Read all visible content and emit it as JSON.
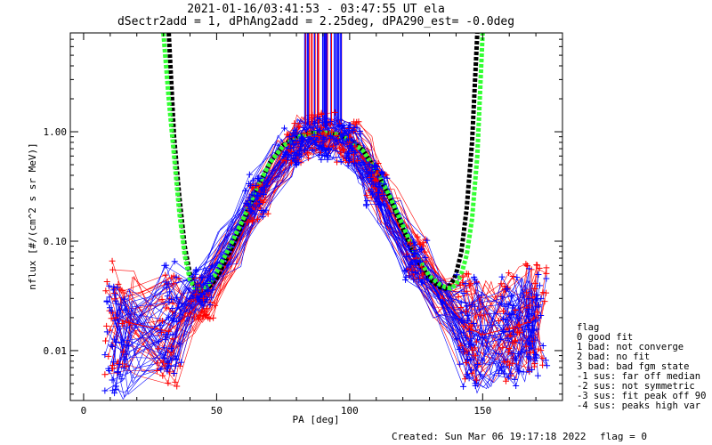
{
  "chart_data": {
    "type": "line",
    "title": "2021-01-16/03:41:53 - 03:47:55 UT ela",
    "subtitle": "dSectr2add = 1, dPhAng2add = 2.25deg, dPA290_est=  -0.0deg",
    "xlabel": "PA [deg]",
    "ylabel": "nflux [#/(cm^2 s sr MeV)]",
    "x_ticks": [
      "0",
      "50",
      "100",
      "150"
    ],
    "y_ticks": [
      "0.01",
      "0.10",
      "1.00"
    ],
    "xlim": [
      -5,
      180
    ],
    "ylim": [
      0.0035,
      8.0
    ],
    "yscale": "log",
    "legend_title": "flag",
    "legend_items": [
      " 0 good fit",
      " 1 bad: not converge",
      " 2 bad: no fit",
      " 3 bad: bad fgm state",
      "-1 sus: far off median",
      "-2 sus: not symmetric",
      "-3 sus: fit peak off 90",
      "-4 sus: peaks high var"
    ],
    "footer_created": "Created: Sun Mar 06 19:17:18 2022",
    "footer_flag": "flag = 0",
    "fit_curves": [
      {
        "color": "#000000",
        "x": [
          32,
          34,
          36,
          38,
          40,
          42,
          44,
          46,
          48,
          50,
          55,
          60,
          65,
          70,
          75,
          80,
          85,
          90,
          95,
          100,
          105,
          110,
          115,
          120,
          125,
          130,
          134,
          136,
          138,
          140,
          142,
          144,
          146,
          148
        ],
        "y": [
          8.0,
          0.9,
          0.25,
          0.09,
          0.05,
          0.038,
          0.035,
          0.036,
          0.04,
          0.046,
          0.08,
          0.15,
          0.3,
          0.52,
          0.75,
          0.9,
          0.97,
          0.98,
          0.95,
          0.85,
          0.68,
          0.44,
          0.25,
          0.13,
          0.07,
          0.045,
          0.038,
          0.037,
          0.04,
          0.05,
          0.08,
          0.2,
          0.8,
          8.0
        ]
      },
      {
        "color": "#33ff33",
        "x": [
          30,
          32,
          34,
          36,
          38,
          40,
          42,
          44,
          46,
          48,
          50,
          55,
          60,
          65,
          70,
          75,
          80,
          85,
          90,
          95,
          100,
          105,
          110,
          115,
          120,
          125,
          130,
          134,
          136,
          138,
          140,
          142,
          144,
          146,
          148,
          150
        ],
        "y": [
          8.0,
          2.0,
          0.6,
          0.18,
          0.075,
          0.044,
          0.037,
          0.036,
          0.038,
          0.043,
          0.052,
          0.09,
          0.16,
          0.3,
          0.52,
          0.74,
          0.89,
          0.96,
          0.98,
          0.95,
          0.84,
          0.67,
          0.44,
          0.26,
          0.14,
          0.075,
          0.048,
          0.04,
          0.038,
          0.037,
          0.04,
          0.05,
          0.075,
          0.16,
          0.6,
          8.0
        ]
      }
    ],
    "red_series": {
      "color": "#ff0000",
      "x": [
        12,
        17,
        32,
        40,
        45,
        55,
        65,
        75,
        80,
        85,
        90,
        95,
        100,
        105,
        110,
        115,
        125,
        135,
        145,
        150,
        160,
        167,
        170
      ],
      "y": [
        0.02,
        0.018,
        0.015,
        0.022,
        0.03,
        0.07,
        0.22,
        0.55,
        0.8,
        0.95,
        0.98,
        0.92,
        0.8,
        0.58,
        0.36,
        0.2,
        0.07,
        0.03,
        0.016,
        0.014,
        0.016,
        0.018,
        0.02
      ]
    },
    "blue_series": {
      "color": "#0000ff",
      "x": [
        12,
        17,
        32,
        40,
        45,
        55,
        65,
        75,
        80,
        85,
        90,
        95,
        100,
        105,
        110,
        115,
        125,
        135,
        145,
        150,
        160,
        167,
        170
      ],
      "y": [
        0.012,
        0.011,
        0.02,
        0.03,
        0.04,
        0.09,
        0.26,
        0.6,
        0.78,
        0.86,
        0.86,
        0.84,
        0.74,
        0.52,
        0.33,
        0.18,
        0.065,
        0.028,
        0.015,
        0.013,
        0.015,
        0.017,
        0.019
      ]
    }
  }
}
